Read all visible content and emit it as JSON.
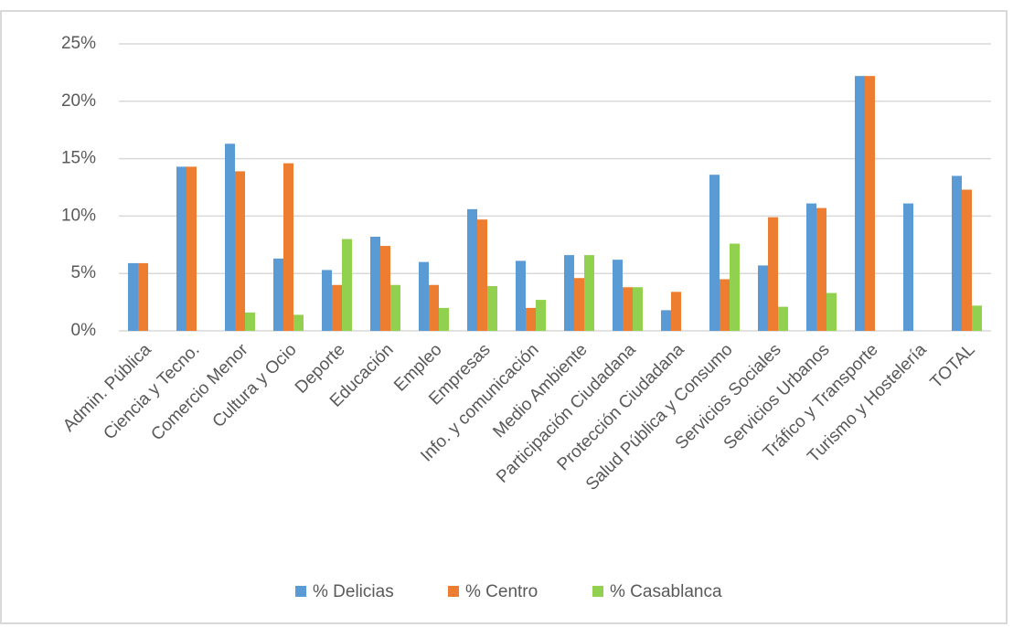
{
  "chart_data": {
    "type": "bar",
    "categories": [
      "Admin. Pública",
      "Ciencia y Tecno.",
      "Comercio Menor",
      "Cultura y Ocio",
      "Deporte",
      "Educación",
      "Empleo",
      "Empresas",
      "Info. y comunicación",
      "Medio Ambiente",
      "Participación Ciudadana",
      "Protección Ciudadana",
      "Salud Pública y Consumo",
      "Servicios Sociales",
      "Servicios Urbanos",
      "Tráfico y Transporte",
      "Turismo y Hostelería",
      "TOTAL"
    ],
    "series": [
      {
        "name": "% Delicias",
        "color": "#5b9bd5",
        "values": [
          5.9,
          14.3,
          16.3,
          6.3,
          5.3,
          8.2,
          6.0,
          10.6,
          6.1,
          6.6,
          6.2,
          1.8,
          13.6,
          5.7,
          11.1,
          22.2,
          11.1,
          13.5
        ]
      },
      {
        "name": "% Centro",
        "color": "#ed7d31",
        "values": [
          5.9,
          14.3,
          13.9,
          14.6,
          4.0,
          7.4,
          4.0,
          9.7,
          2.0,
          4.6,
          3.8,
          3.4,
          4.5,
          9.9,
          10.7,
          22.2,
          0,
          12.3
        ]
      },
      {
        "name": "% Casablanca",
        "color": "#92d050",
        "values": [
          0,
          0,
          1.6,
          1.4,
          8.0,
          4.0,
          2.0,
          3.9,
          2.7,
          6.6,
          3.8,
          0,
          7.6,
          2.1,
          3.3,
          0,
          0,
          2.2
        ]
      }
    ],
    "ylim": [
      0,
      25
    ],
    "yticks": [
      {
        "value": 0,
        "label": "0%"
      },
      {
        "value": 5,
        "label": "5%"
      },
      {
        "value": 10,
        "label": "10%"
      },
      {
        "value": 15,
        "label": "15%"
      },
      {
        "value": 20,
        "label": "20%"
      },
      {
        "value": 25,
        "label": "25%"
      }
    ],
    "grid": true,
    "legend": "bottom"
  }
}
